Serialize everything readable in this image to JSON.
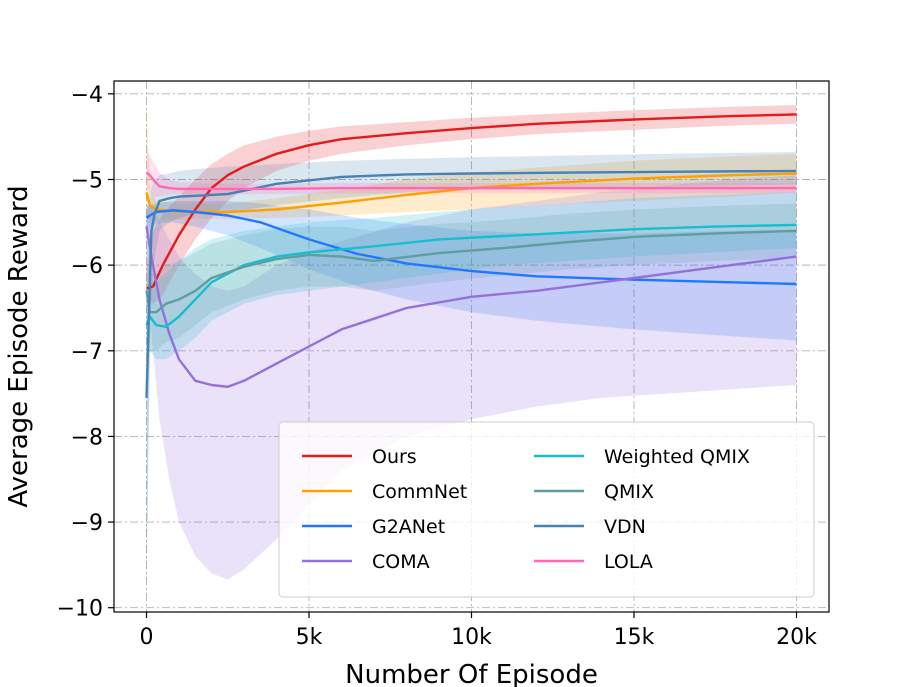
{
  "chart_data": {
    "type": "line",
    "xlabel": "Number Of Episode",
    "ylabel": "Average Episode Reward",
    "xlim": [
      -1000,
      21000
    ],
    "ylim": [
      -10.05,
      -3.85
    ],
    "xticks": [
      0,
      5000,
      10000,
      15000,
      20000
    ],
    "xtick_labels": [
      "0",
      "5k",
      "10k",
      "15k",
      "20k"
    ],
    "yticks": [
      -4,
      -5,
      -6,
      -7,
      -8,
      -9,
      -10
    ],
    "ytick_labels": [
      "−4",
      "−5",
      "−6",
      "−7",
      "−8",
      "−9",
      "−10"
    ],
    "grid": true,
    "legend": "lower-right, 2 columns",
    "series": [
      {
        "name": "Ours",
        "color": "#e41a1c",
        "x": [
          0,
          200,
          500,
          1000,
          1500,
          2000,
          2500,
          3000,
          4000,
          5000,
          6000,
          8000,
          10000,
          12000,
          15000,
          18000,
          20000
        ],
        "y": [
          -6.27,
          -6.25,
          -6.0,
          -5.65,
          -5.35,
          -5.1,
          -4.95,
          -4.85,
          -4.7,
          -4.6,
          -4.53,
          -4.46,
          -4.4,
          -4.35,
          -4.3,
          -4.26,
          -4.24
        ],
        "lo": [
          -6.35,
          -6.45,
          -6.35,
          -6.0,
          -5.7,
          -5.45,
          -5.25,
          -5.1,
          -4.9,
          -4.78,
          -4.7,
          -4.6,
          -4.53,
          -4.47,
          -4.42,
          -4.37,
          -4.35
        ],
        "hi": [
          -6.0,
          -5.6,
          -5.4,
          -5.2,
          -5.0,
          -4.82,
          -4.7,
          -4.6,
          -4.5,
          -4.43,
          -4.38,
          -4.33,
          -4.28,
          -4.24,
          -4.19,
          -4.15,
          -4.13
        ]
      },
      {
        "name": "CommNet",
        "color": "#ff9f00",
        "x": [
          0,
          100,
          300,
          800,
          1500,
          2500,
          4000,
          6000,
          8000,
          10000,
          12000,
          15000,
          18000,
          20000
        ],
        "y": [
          -5.15,
          -5.3,
          -5.35,
          -5.37,
          -5.38,
          -5.38,
          -5.35,
          -5.27,
          -5.18,
          -5.1,
          -5.05,
          -4.99,
          -4.95,
          -4.93
        ],
        "lo": [
          -5.4,
          -5.5,
          -5.48,
          -5.47,
          -5.46,
          -5.46,
          -5.45,
          -5.42,
          -5.38,
          -5.35,
          -5.3,
          -5.25,
          -5.2,
          -5.15
        ],
        "hi": [
          -4.1,
          -5.1,
          -5.25,
          -5.27,
          -5.28,
          -5.28,
          -5.22,
          -5.12,
          -5.0,
          -4.92,
          -4.86,
          -4.78,
          -4.73,
          -4.7
        ]
      },
      {
        "name": "G2ANet",
        "color": "#1f78ff",
        "x": [
          0,
          100,
          300,
          800,
          1500,
          2500,
          3500,
          5000,
          6500,
          8000,
          10000,
          12000,
          15000,
          18000,
          20000
        ],
        "y": [
          -5.45,
          -5.42,
          -5.38,
          -5.36,
          -5.38,
          -5.42,
          -5.5,
          -5.7,
          -5.87,
          -5.98,
          -6.07,
          -6.13,
          -6.17,
          -6.2,
          -6.22
        ],
        "lo": [
          -5.6,
          -5.55,
          -5.52,
          -5.5,
          -5.55,
          -5.65,
          -5.8,
          -6.05,
          -6.25,
          -6.4,
          -6.55,
          -6.65,
          -6.75,
          -6.83,
          -6.88
        ],
        "hi": [
          -5.3,
          -5.3,
          -5.28,
          -5.25,
          -5.25,
          -5.25,
          -5.28,
          -5.35,
          -5.45,
          -5.52,
          -5.6,
          -5.63,
          -5.63,
          -5.6,
          -5.58
        ]
      },
      {
        "name": "COMA",
        "color": "#9370db",
        "x": [
          0,
          150,
          400,
          700,
          1000,
          1500,
          2000,
          2500,
          3000,
          4000,
          5000,
          6000,
          8000,
          10000,
          12000,
          14000,
          16000,
          18000,
          20000
        ],
        "y": [
          -5.55,
          -5.9,
          -6.4,
          -6.8,
          -7.1,
          -7.35,
          -7.4,
          -7.42,
          -7.35,
          -7.15,
          -6.95,
          -6.75,
          -6.5,
          -6.37,
          -6.3,
          -6.2,
          -6.1,
          -6.0,
          -5.9
        ],
        "lo": [
          -5.8,
          -6.8,
          -7.8,
          -8.5,
          -9.0,
          -9.4,
          -9.6,
          -9.67,
          -9.55,
          -9.2,
          -8.8,
          -8.4,
          -8.0,
          -7.8,
          -7.65,
          -7.55,
          -7.5,
          -7.45,
          -7.4
        ],
        "hi": [
          -5.3,
          -5.3,
          -5.5,
          -5.7,
          -5.9,
          -6.1,
          -6.25,
          -6.3,
          -6.25,
          -6.0,
          -5.85,
          -5.72,
          -5.5,
          -5.35,
          -5.25,
          -5.15,
          -5.07,
          -5.0,
          -4.95
        ]
      },
      {
        "name": "Weighted QMIX",
        "color": "#17becf",
        "x": [
          0,
          100,
          300,
          600,
          1000,
          1500,
          2000,
          3000,
          4000,
          5000,
          7000,
          9000,
          11000,
          13000,
          15000,
          17500,
          20000
        ],
        "y": [
          -6.7,
          -6.6,
          -6.7,
          -6.72,
          -6.6,
          -6.4,
          -6.2,
          -6.0,
          -5.9,
          -5.85,
          -5.78,
          -5.7,
          -5.66,
          -5.62,
          -5.58,
          -5.55,
          -5.53
        ],
        "lo": [
          -7.1,
          -7.0,
          -7.1,
          -7.1,
          -7.0,
          -6.85,
          -6.65,
          -6.45,
          -6.35,
          -6.3,
          -6.2,
          -6.1,
          -6.0,
          -5.95,
          -5.9,
          -5.85,
          -5.8
        ],
        "hi": [
          -6.3,
          -6.2,
          -6.2,
          -6.1,
          -5.95,
          -5.8,
          -5.7,
          -5.6,
          -5.55,
          -5.5,
          -5.45,
          -5.38,
          -5.32,
          -5.28,
          -5.22,
          -5.18,
          -5.15
        ]
      },
      {
        "name": "QMIX",
        "color": "#5f9ea0",
        "x": [
          0,
          100,
          300,
          600,
          1000,
          1500,
          2000,
          3000,
          4000,
          5000,
          6000,
          7000,
          9000,
          11000,
          13000,
          15000,
          17500,
          20000
        ],
        "y": [
          -6.3,
          -6.55,
          -6.55,
          -6.45,
          -6.4,
          -6.3,
          -6.15,
          -6.02,
          -5.93,
          -5.88,
          -5.9,
          -5.95,
          -5.86,
          -5.8,
          -5.73,
          -5.67,
          -5.63,
          -5.6
        ],
        "lo": [
          -9.8,
          -7.0,
          -7.0,
          -6.9,
          -6.85,
          -6.7,
          -6.55,
          -6.4,
          -6.3,
          -6.25,
          -6.25,
          -6.3,
          -6.2,
          -6.12,
          -6.05,
          -6.0,
          -5.95,
          -5.92
        ],
        "hi": [
          -6.0,
          -6.1,
          -6.1,
          -6.0,
          -5.95,
          -5.85,
          -5.75,
          -5.65,
          -5.58,
          -5.55,
          -5.55,
          -5.6,
          -5.52,
          -5.47,
          -5.4,
          -5.35,
          -5.31,
          -5.28
        ]
      },
      {
        "name": "VDN",
        "color": "#4682b4",
        "x": [
          0,
          80,
          150,
          250,
          400,
          700,
          1000,
          1500,
          2500,
          4000,
          6000,
          8000,
          10000,
          13000,
          16000,
          20000
        ],
        "y": [
          -7.55,
          -6.5,
          -5.6,
          -5.4,
          -5.25,
          -5.22,
          -5.2,
          -5.19,
          -5.17,
          -5.05,
          -4.97,
          -4.94,
          -4.93,
          -4.92,
          -4.91,
          -4.9
        ],
        "lo": [
          -9.8,
          -7.5,
          -6.3,
          -5.9,
          -5.6,
          -5.5,
          -5.45,
          -5.4,
          -5.38,
          -5.3,
          -5.22,
          -5.15,
          -5.12,
          -5.1,
          -5.08,
          -5.06
        ],
        "hi": [
          -5.4,
          -5.3,
          -5.1,
          -5.0,
          -4.95,
          -4.93,
          -4.9,
          -4.88,
          -4.85,
          -4.82,
          -4.78,
          -4.76,
          -4.74,
          -4.72,
          -4.7,
          -4.68
        ]
      },
      {
        "name": "LOLA",
        "color": "#ff69b4",
        "x": [
          0,
          100,
          250,
          400,
          700,
          1000,
          2000,
          4000,
          6000,
          8000,
          10000,
          13000,
          16000,
          20000
        ],
        "y": [
          -4.92,
          -4.95,
          -5.02,
          -5.08,
          -5.1,
          -5.11,
          -5.11,
          -5.11,
          -5.1,
          -5.1,
          -5.1,
          -5.1,
          -5.1,
          -5.1
        ],
        "lo": [
          -5.1,
          -5.15,
          -5.2,
          -5.2,
          -5.18,
          -5.17,
          -5.17,
          -5.17,
          -5.16,
          -5.16,
          -5.16,
          -5.16,
          -5.16,
          -5.16
        ],
        "hi": [
          -4.65,
          -4.72,
          -4.82,
          -4.92,
          -5.0,
          -5.03,
          -5.05,
          -5.05,
          -5.04,
          -5.04,
          -5.04,
          -5.04,
          -5.04,
          -5.04
        ]
      }
    ]
  }
}
